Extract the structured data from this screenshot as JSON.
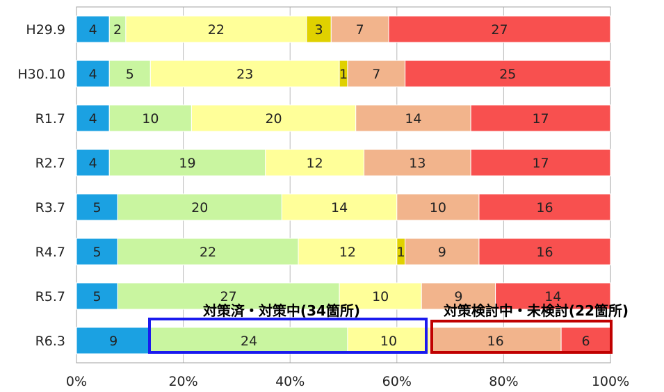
{
  "chart_data": {
    "type": "bar",
    "orientation": "horizontal",
    "stacked": true,
    "percent_stacked": true,
    "categories": [
      "H29.9",
      "H30.10",
      "R1.7",
      "R2.7",
      "R3.7",
      "R4.7",
      "R5.7",
      "R6.3"
    ],
    "series": [
      {
        "color": "#1ba1e2",
        "values": [
          4,
          4,
          4,
          4,
          5,
          5,
          5,
          9
        ]
      },
      {
        "color": "#c9f5a0",
        "values": [
          2,
          5,
          10,
          19,
          20,
          22,
          27,
          24
        ]
      },
      {
        "color": "#ffff99",
        "values": [
          22,
          23,
          20,
          12,
          14,
          12,
          10,
          10
        ]
      },
      {
        "color": "#e0d100",
        "values": [
          3,
          1,
          0,
          0,
          0,
          1,
          0,
          0
        ]
      },
      {
        "color": "#f2b48c",
        "values": [
          7,
          7,
          14,
          13,
          10,
          9,
          9,
          16
        ]
      },
      {
        "color": "#f8504f",
        "values": [
          27,
          25,
          17,
          17,
          16,
          16,
          14,
          6
        ]
      }
    ],
    "xtick_labels": [
      "0%",
      "20%",
      "40%",
      "60%",
      "80%",
      "100%"
    ],
    "xlim": [
      0,
      100
    ],
    "grid": "vertical",
    "legend": "none"
  },
  "annotations": {
    "done": {
      "text": "対策済・対策中(34箇所)",
      "color": "#1a1aee"
    },
    "pending": {
      "text": "対策検討中・未検討(22箇所)",
      "color": "#e8141e"
    }
  }
}
